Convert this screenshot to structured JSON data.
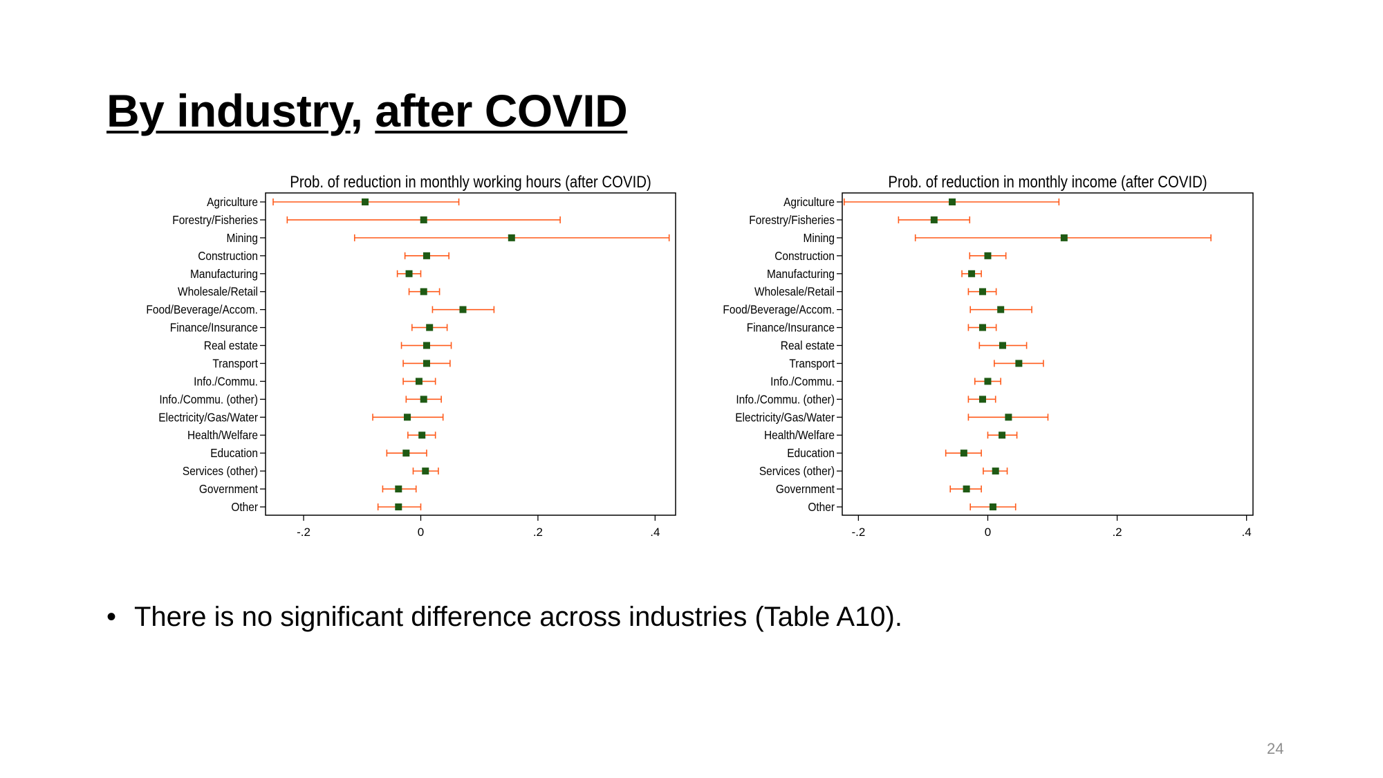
{
  "slide": {
    "title_part1": "By industry",
    "title_sep": ", ",
    "title_part2": "after COVID",
    "bullet": "There is no significant difference across industries (Table A10).",
    "page_number": "24"
  },
  "colors": {
    "ci": "#ff5a1a",
    "point": "#1f5a14",
    "axis": "#000000"
  },
  "chart_data": [
    {
      "type": "scatter",
      "title": "Prob. of reduction in monthly working hours (after COVID)",
      "xlim": [
        -0.265,
        0.435
      ],
      "xticks": [
        -0.2,
        0,
        0.2,
        0.4
      ],
      "xtick_labels": [
        "-.2",
        "0",
        ".2",
        ".4"
      ],
      "categories": [
        "Agriculture",
        "Forestry/Fisheries",
        "Mining",
        "Construction",
        "Manufacturing",
        "Wholesale/Retail",
        "Food/Beverage/Accom.",
        "Finance/Insurance",
        "Real estate",
        "Transport",
        "Info./Commu.",
        "Info./Commu. (other)",
        "Electricity/Gas/Water",
        "Health/Welfare",
        "Education",
        "Services (other)",
        "Government",
        "Other"
      ],
      "estimate": [
        -0.095,
        0.005,
        0.155,
        0.01,
        -0.02,
        0.005,
        0.072,
        0.015,
        0.01,
        0.01,
        -0.003,
        0.005,
        -0.023,
        0.002,
        -0.025,
        0.008,
        -0.038,
        -0.038
      ],
      "ci_low": [
        -0.252,
        -0.228,
        -0.113,
        -0.027,
        -0.04,
        -0.02,
        0.02,
        -0.015,
        -0.033,
        -0.03,
        -0.03,
        -0.025,
        -0.082,
        -0.022,
        -0.058,
        -0.013,
        -0.065,
        -0.073
      ],
      "ci_high": [
        0.065,
        0.238,
        0.424,
        0.048,
        0.0,
        0.032,
        0.125,
        0.045,
        0.052,
        0.05,
        0.025,
        0.035,
        0.038,
        0.025,
        0.01,
        0.03,
        -0.008,
        0.0
      ],
      "grid": false,
      "legend": "none"
    },
    {
      "type": "scatter",
      "title": "Prob. of reduction in monthly income (after COVID)",
      "xlim": [
        -0.225,
        0.41
      ],
      "xticks": [
        -0.2,
        0,
        0.2,
        0.4
      ],
      "xtick_labels": [
        "-.2",
        "0",
        ".2",
        ".4"
      ],
      "categories": [
        "Agriculture",
        "Forestry/Fisheries",
        "Mining",
        "Construction",
        "Manufacturing",
        "Wholesale/Retail",
        "Food/Beverage/Accom.",
        "Finance/Insurance",
        "Real estate",
        "Transport",
        "Info./Commu.",
        "Info./Commu. (other)",
        "Electricity/Gas/Water",
        "Health/Welfare",
        "Education",
        "Services (other)",
        "Government",
        "Other"
      ],
      "estimate": [
        -0.055,
        -0.083,
        0.118,
        0.0,
        -0.025,
        -0.008,
        0.02,
        -0.008,
        0.023,
        0.048,
        0.0,
        -0.008,
        0.032,
        0.022,
        -0.037,
        0.012,
        -0.033,
        0.008
      ],
      "ci_low": [
        -0.222,
        -0.138,
        -0.112,
        -0.028,
        -0.04,
        -0.03,
        -0.027,
        -0.03,
        -0.013,
        0.01,
        -0.02,
        -0.03,
        -0.03,
        0.0,
        -0.065,
        -0.007,
        -0.058,
        -0.027
      ],
      "ci_high": [
        0.11,
        -0.028,
        0.345,
        0.028,
        -0.01,
        0.013,
        0.068,
        0.013,
        0.06,
        0.086,
        0.02,
        0.012,
        0.093,
        0.045,
        -0.01,
        0.03,
        -0.01,
        0.043
      ],
      "grid": false,
      "legend": "none"
    }
  ]
}
